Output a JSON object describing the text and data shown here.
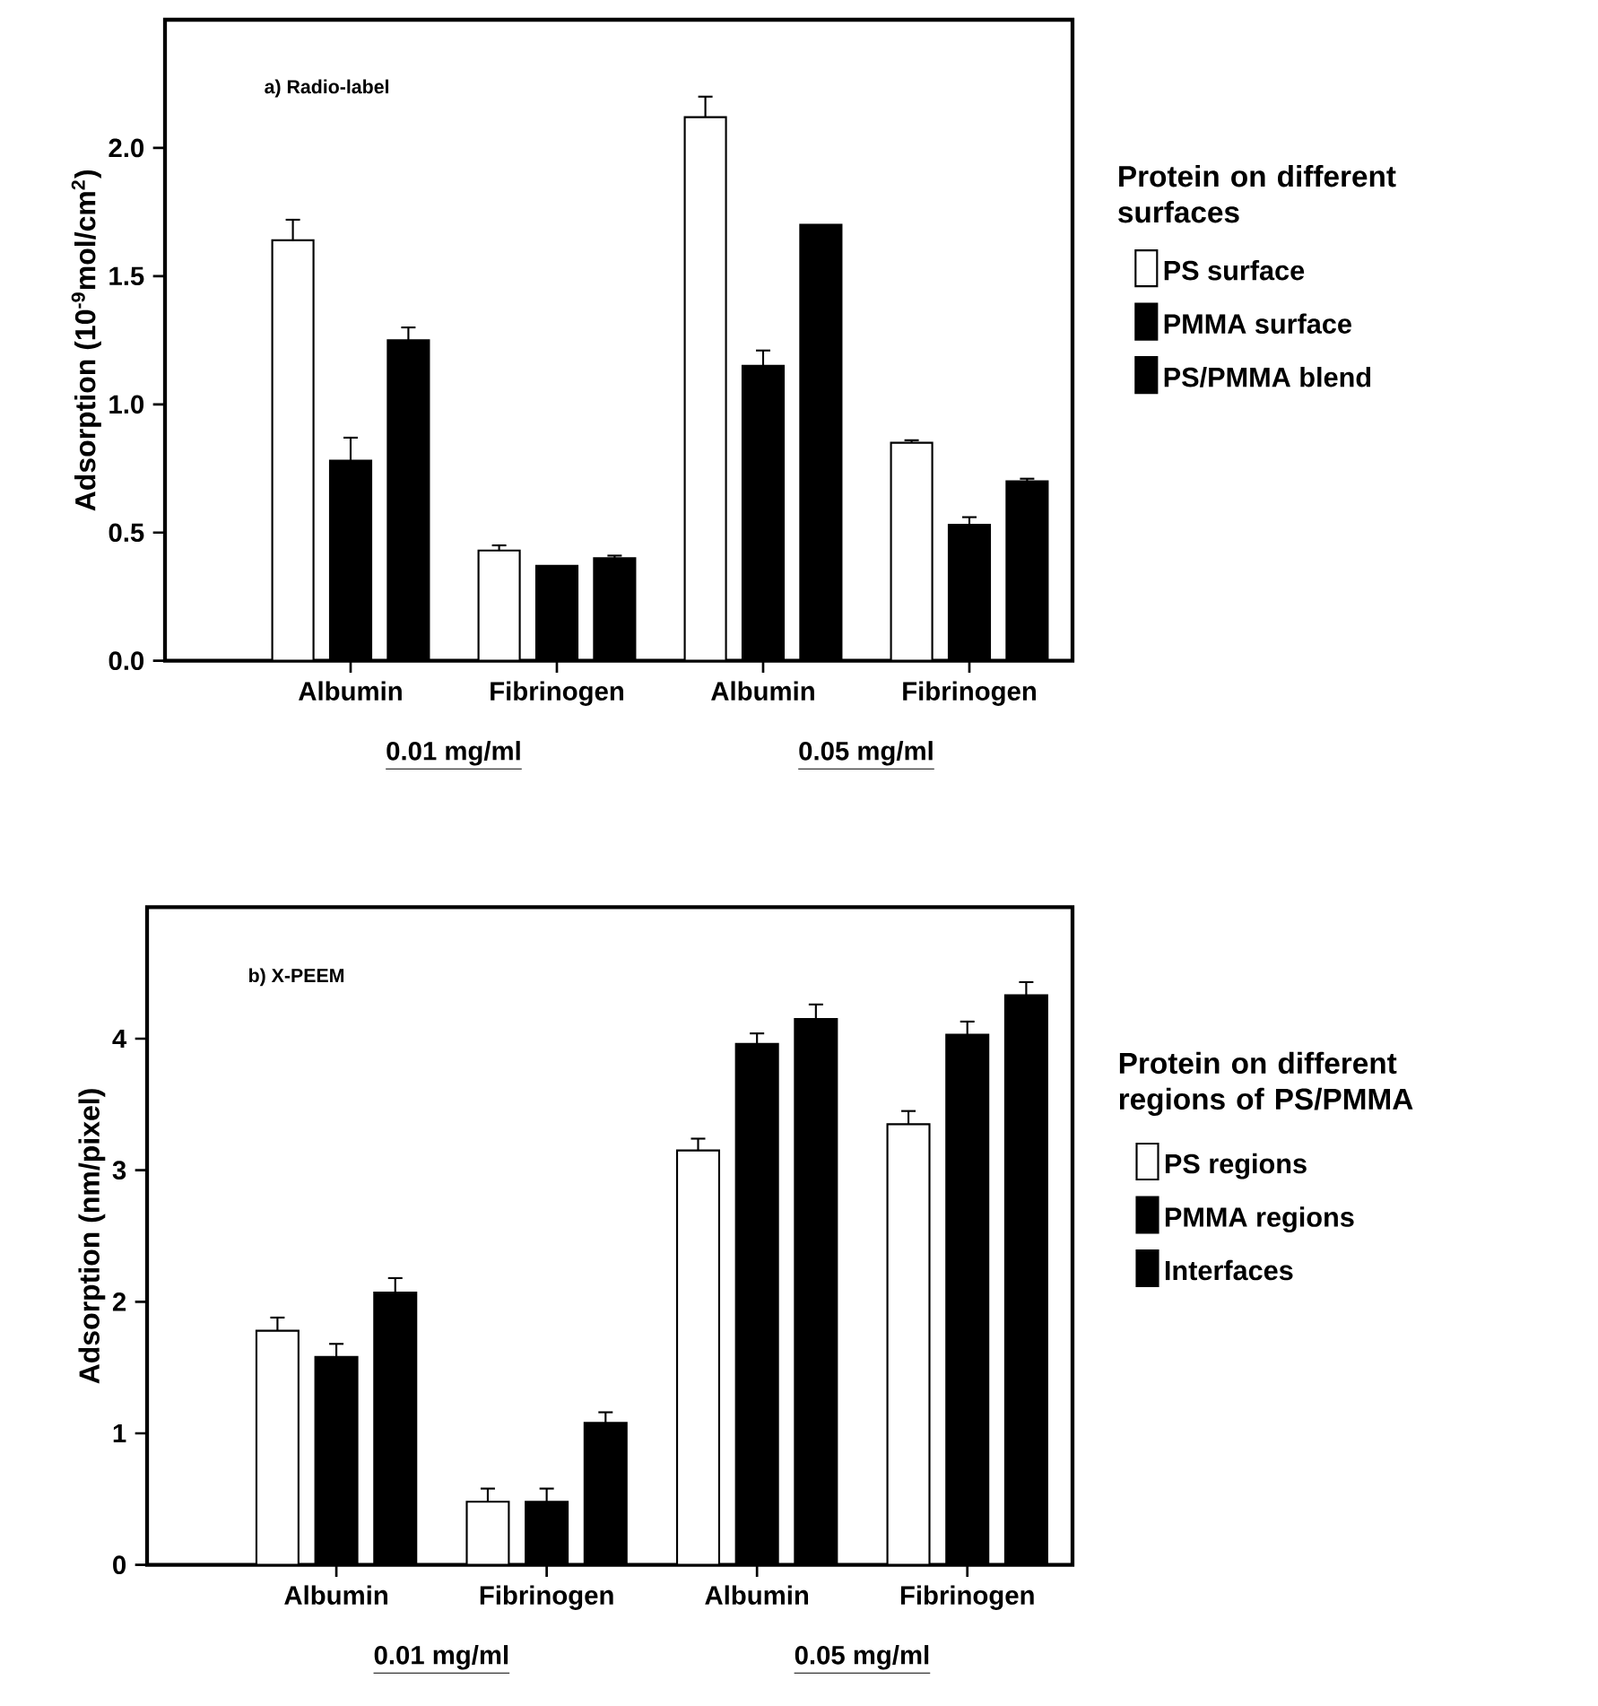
{
  "chart_data": [
    {
      "type": "bar",
      "ylabel": "Adsorption (10$^{-9}$mol/cm$^{2}$)",
      "legend_title": "Protein on different surfaces",
      "legend": "right",
      "annotations": [
        "a) Radio-label",
        "0.01 mg/ml",
        "0.05 mg/ml"
      ],
      "categories": [
        "Albumin",
        "Fibrinogen",
        "Albumin",
        "Fibrinogen"
      ],
      "ylim": [
        0,
        2.5
      ],
      "yticks": [
        {
          "value": 0,
          "label": "0.0"
        },
        {
          "value": 0.5,
          "label": "0.5"
        },
        {
          "value": 1,
          "label": "1.0"
        },
        {
          "value": 1.5,
          "label": "1.5"
        },
        {
          "value": 2,
          "label": "2.0"
        }
      ],
      "series": [
        {
          "name": "PS surface",
          "color": "#ffffff",
          "values": [
            1.64,
            0.43,
            2.12,
            0.85
          ],
          "errors": [
            0.08,
            0.02,
            0.08,
            0.01
          ]
        },
        {
          "name": "PMMA surface",
          "color": "#000000",
          "values": [
            0.78,
            0.37,
            1.15,
            0.53
          ],
          "errors": [
            0.09,
            null,
            0.06,
            0.03
          ]
        },
        {
          "name": "PS/PMMA blend",
          "color": "#000000",
          "values": [
            1.25,
            0.4,
            1.7,
            0.7
          ],
          "errors": [
            0.05,
            0.01,
            null,
            0.01
          ]
        }
      ]
    },
    {
      "type": "bar",
      "ylabel": "Adsorption (nm/pixel)",
      "legend_title": "Protein on different regions of PS/PMMA",
      "legend": "right",
      "annotations": [
        "b) X-PEEM",
        "0.01 mg/ml",
        "0.05 mg/ml"
      ],
      "categories": [
        "Albumin",
        "Fibrinogen",
        "Albumin",
        "Fibrinogen"
      ],
      "ylim": [
        0,
        5
      ],
      "yticks": [
        0,
        1,
        2,
        3,
        4
      ],
      "series": [
        {
          "name": "PS regions",
          "color": "#ffffff",
          "values": [
            1.78,
            0.48,
            3.15,
            3.35
          ],
          "errors": [
            0.1,
            0.1,
            0.09,
            0.1
          ]
        },
        {
          "name": "PMMA regions",
          "color": "#000000",
          "values": [
            1.58,
            0.48,
            3.96,
            4.03
          ],
          "errors": [
            0.1,
            0.1,
            0.08,
            0.1
          ]
        },
        {
          "name": "Interfaces",
          "color": "#000000",
          "values": [
            2.07,
            1.08,
            4.15,
            4.33
          ],
          "errors": [
            0.11,
            0.08,
            0.11,
            0.1
          ]
        }
      ]
    }
  ]
}
